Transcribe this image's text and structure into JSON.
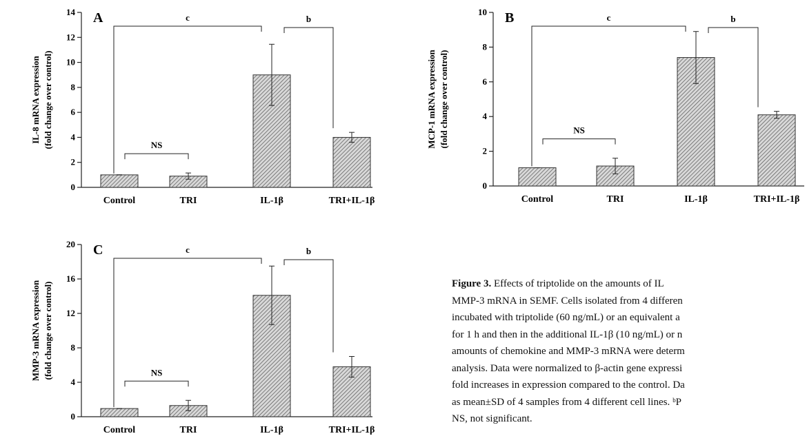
{
  "chart_data": [
    {
      "type": "bar",
      "title": "A",
      "ylabel": [
        "IL-8 mRNA expression",
        "(fold change over control)"
      ],
      "categories": [
        "Control",
        "TRI",
        "IL-1β",
        "TRI+IL-1β"
      ],
      "values": [
        1,
        0.9,
        9.0,
        4.0
      ],
      "errors": [
        0,
        0.25,
        2.45,
        0.4
      ],
      "ylim": [
        0,
        14
      ],
      "yticks": [
        0,
        2,
        4,
        6,
        8,
        10,
        12,
        14
      ],
      "color": "#888888",
      "annotations": [
        "c",
        "b",
        "NS"
      ]
    },
    {
      "type": "bar",
      "title": "B",
      "ylabel": [
        "MCP-1 mRNA expression",
        "(fold change over control)"
      ],
      "categories": [
        "Control",
        "TRI",
        "IL-1β",
        "TRI+IL-1β"
      ],
      "values": [
        1.05,
        1.15,
        7.4,
        4.1
      ],
      "errors": [
        0,
        0.45,
        1.5,
        0.2
      ],
      "ylim": [
        0,
        10
      ],
      "yticks": [
        0,
        2,
        4,
        6,
        8,
        10
      ],
      "color": "#888888",
      "annotations": [
        "c",
        "b",
        "NS"
      ]
    },
    {
      "type": "bar",
      "title": "C",
      "ylabel": [
        "MMP-3 mRNA expression",
        "(fold change over control)"
      ],
      "categories": [
        "Control",
        "TRI",
        "IL-1β",
        "TRI+IL-1β"
      ],
      "values": [
        0.95,
        1.3,
        14.1,
        5.8
      ],
      "errors": [
        0,
        0.6,
        3.4,
        1.2
      ],
      "ylim": [
        0,
        20
      ],
      "yticks": [
        0,
        4,
        8,
        12,
        16,
        20
      ],
      "color": "#888888",
      "annotations": [
        "c",
        "b",
        "NS"
      ]
    }
  ],
  "caption": {
    "label": "Figure 3.",
    "lines": [
      "Effects of triptolide on the amounts of IL",
      "MMP-3 mRNA in SEMF.  Cells isolated from 4 differen",
      "incubated with triptolide (60 ng/mL) or an equivalent a",
      "for 1 h and then in the additional IL-1β (10 ng/mL) or n",
      "amounts of chemokine and MMP-3 mRNA were determ",
      "analysis.  Data were normalized to β-actin gene expressi",
      "fold increases in expression compared to the control.  Da",
      "as mean±SD of 4 samples from 4 different cell lines.  ᵇP",
      "NS, not significant."
    ]
  }
}
